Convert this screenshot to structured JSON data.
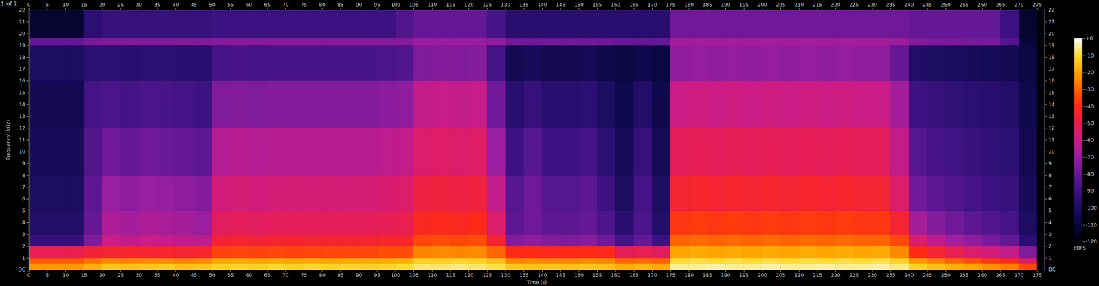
{
  "chart_data": {
    "type": "spectrogram",
    "annotations": [
      "1 of 2"
    ],
    "xlabel": "Time (s)",
    "ylabel": "Frequency (kHz)",
    "xlim": [
      0,
      277
    ],
    "ylim": [
      0,
      22
    ],
    "xticks": [
      0,
      5,
      10,
      15,
      20,
      25,
      30,
      35,
      40,
      45,
      50,
      55,
      60,
      65,
      70,
      75,
      80,
      85,
      90,
      95,
      100,
      105,
      110,
      115,
      120,
      125,
      130,
      135,
      140,
      145,
      150,
      155,
      160,
      165,
      170,
      175,
      180,
      185,
      190,
      195,
      200,
      205,
      210,
      215,
      220,
      225,
      230,
      235,
      240,
      245,
      250,
      255,
      260,
      265,
      270,
      275
    ],
    "yticks": [
      {
        "value": 0,
        "label": "DC"
      },
      1,
      2,
      3,
      4,
      5,
      6,
      7,
      8,
      9,
      10,
      11,
      12,
      13,
      14,
      15,
      16,
      17,
      18,
      19,
      20,
      21,
      22
    ],
    "time_bins": [
      0,
      5,
      10,
      15,
      20,
      25,
      30,
      35,
      40,
      45,
      50,
      55,
      60,
      65,
      70,
      75,
      80,
      85,
      90,
      95,
      100,
      105,
      110,
      115,
      120,
      125,
      130,
      135,
      140,
      145,
      150,
      155,
      160,
      165,
      170,
      175,
      180,
      185,
      190,
      195,
      200,
      205,
      210,
      215,
      220,
      225,
      230,
      235,
      240,
      245,
      250,
      255,
      260,
      265,
      270,
      275,
      277
    ],
    "freq_bins": [
      0,
      0.5,
      1,
      2,
      3,
      5,
      8,
      12,
      16,
      19,
      19.6,
      22
    ],
    "dbfs": [
      [
        -22,
        -22,
        -22,
        -18,
        -14,
        -15,
        -14,
        -13,
        -15,
        -14,
        -12,
        -11,
        -12,
        -11,
        -12,
        -11,
        -12,
        -11,
        -12,
        -11,
        -10,
        -7,
        -7,
        -6,
        -7,
        -9,
        -14,
        -15,
        -14,
        -15,
        -14,
        -15,
        -18,
        -17,
        -19,
        -5,
        -5,
        -4,
        -5,
        -5,
        -4,
        -5,
        -5,
        -4,
        -5,
        -5,
        -4,
        -6,
        -12,
        -15,
        -18,
        -20,
        -23,
        -26,
        -35,
        -120
      ],
      [
        -32,
        -32,
        -32,
        -28,
        -24,
        -25,
        -24,
        -24,
        -25,
        -24,
        -20,
        -19,
        -20,
        -19,
        -20,
        -19,
        -20,
        -19,
        -19,
        -19,
        -18,
        -12,
        -12,
        -11,
        -12,
        -15,
        -25,
        -24,
        -25,
        -25,
        -24,
        -25,
        -30,
        -29,
        -31,
        -10,
        -9,
        -10,
        -9,
        -10,
        -9,
        -10,
        -9,
        -10,
        -9,
        -10,
        -9,
        -12,
        -22,
        -26,
        -30,
        -34,
        -38,
        -42,
        -55,
        -120
      ],
      [
        -50,
        -50,
        -50,
        -46,
        -45,
        -44,
        -45,
        -44,
        -45,
        -44,
        -36,
        -35,
        -36,
        -35,
        -36,
        -35,
        -35,
        -35,
        -35,
        -34,
        -34,
        -25,
        -24,
        -25,
        -24,
        -30,
        -40,
        -40,
        -41,
        -40,
        -40,
        -41,
        -52,
        -50,
        -53,
        -20,
        -19,
        -20,
        -19,
        -20,
        -19,
        -20,
        -19,
        -20,
        -19,
        -20,
        -19,
        -24,
        -40,
        -45,
        -50,
        -55,
        -58,
        -62,
        -75,
        -120
      ],
      [
        -92,
        -92,
        -92,
        -75,
        -60,
        -62,
        -60,
        -61,
        -62,
        -63,
        -46,
        -45,
        -46,
        -45,
        -45,
        -45,
        -45,
        -45,
        -45,
        -44,
        -44,
        -35,
        -34,
        -35,
        -34,
        -45,
        -74,
        -72,
        -74,
        -75,
        -73,
        -78,
        -88,
        -80,
        -90,
        -30,
        -29,
        -30,
        -29,
        -30,
        -29,
        -30,
        -29,
        -30,
        -29,
        -30,
        -30,
        -35,
        -55,
        -62,
        -68,
        -72,
        -76,
        -80,
        -95,
        -120
      ],
      [
        -98,
        -98,
        -98,
        -80,
        -66,
        -68,
        -66,
        -67,
        -68,
        -70,
        -53,
        -52,
        -53,
        -52,
        -52,
        -52,
        -52,
        -52,
        -52,
        -51,
        -50,
        -42,
        -41,
        -42,
        -41,
        -55,
        -82,
        -78,
        -82,
        -82,
        -80,
        -86,
        -96,
        -86,
        -98,
        -38,
        -37,
        -38,
        -37,
        -38,
        -37,
        -38,
        -37,
        -38,
        -37,
        -38,
        -38,
        -45,
        -68,
        -74,
        -78,
        -82,
        -85,
        -88,
        -100,
        -120
      ],
      [
        -100,
        -100,
        -100,
        -82,
        -70,
        -72,
        -70,
        -71,
        -72,
        -74,
        -58,
        -57,
        -58,
        -57,
        -57,
        -57,
        -57,
        -57,
        -57,
        -56,
        -55,
        -48,
        -47,
        -48,
        -47,
        -62,
        -84,
        -78,
        -84,
        -84,
        -82,
        -90,
        -100,
        -88,
        -100,
        -45,
        -44,
        -45,
        -44,
        -45,
        -44,
        -45,
        -44,
        -45,
        -44,
        -45,
        -45,
        -55,
        -78,
        -82,
        -85,
        -88,
        -90,
        -92,
        -102,
        -120
      ],
      [
        -102,
        -102,
        -102,
        -85,
        -78,
        -80,
        -78,
        -79,
        -80,
        -82,
        -65,
        -64,
        -65,
        -64,
        -64,
        -64,
        -64,
        -64,
        -64,
        -63,
        -62,
        -55,
        -54,
        -55,
        -54,
        -70,
        -90,
        -84,
        -90,
        -90,
        -88,
        -95,
        -102,
        -92,
        -103,
        -52,
        -51,
        -52,
        -51,
        -52,
        -51,
        -52,
        -51,
        -52,
        -51,
        -52,
        -52,
        -62,
        -84,
        -87,
        -89,
        -91,
        -93,
        -95,
        -104,
        -120
      ],
      [
        -104,
        -104,
        -104,
        -88,
        -86,
        -88,
        -86,
        -87,
        -88,
        -90,
        -75,
        -74,
        -75,
        -74,
        -74,
        -74,
        -74,
        -74,
        -74,
        -73,
        -72,
        -62,
        -61,
        -62,
        -61,
        -78,
        -96,
        -92,
        -96,
        -96,
        -95,
        -100,
        -105,
        -98,
        -106,
        -60,
        -59,
        -60,
        -59,
        -60,
        -59,
        -60,
        -59,
        -60,
        -59,
        -60,
        -60,
        -68,
        -90,
        -92,
        -94,
        -95,
        -96,
        -98,
        -106,
        -120
      ],
      [
        -100,
        -100,
        -100,
        -95,
        -95,
        -96,
        -95,
        -95,
        -96,
        -96,
        -88,
        -87,
        -88,
        -87,
        -87,
        -87,
        -87,
        -87,
        -87,
        -86,
        -85,
        -75,
        -74,
        -75,
        -74,
        -88,
        -104,
        -102,
        -104,
        -104,
        -103,
        -106,
        -108,
        -105,
        -108,
        -72,
        -71,
        -72,
        -71,
        -72,
        -71,
        -72,
        -71,
        -72,
        -71,
        -72,
        -72,
        -80,
        -98,
        -100,
        -101,
        -102,
        -103,
        -104,
        -108,
        -120
      ],
      [
        -80,
        -80,
        -80,
        -76,
        -75,
        -75,
        -75,
        -75,
        -75,
        -75,
        -74,
        -74,
        -74,
        -74,
        -74,
        -74,
        -74,
        -74,
        -74,
        -74,
        -74,
        -70,
        -70,
        -70,
        -70,
        -72,
        -78,
        -78,
        -78,
        -78,
        -78,
        -78,
        -80,
        -80,
        -80,
        -68,
        -68,
        -68,
        -68,
        -68,
        -68,
        -68,
        -68,
        -68,
        -68,
        -68,
        -68,
        -70,
        -75,
        -76,
        -76,
        -77,
        -77,
        -85,
        -110,
        -120
      ],
      [
        -112,
        -112,
        -112,
        -95,
        -92,
        -92,
        -92,
        -92,
        -92,
        -92,
        -90,
        -90,
        -90,
        -90,
        -90,
        -90,
        -90,
        -90,
        -90,
        -90,
        -85,
        -80,
        -80,
        -80,
        -80,
        -88,
        -96,
        -96,
        -96,
        -96,
        -96,
        -96,
        -96,
        -96,
        -96,
        -78,
        -78,
        -78,
        -78,
        -78,
        -78,
        -78,
        -78,
        -78,
        -78,
        -78,
        -78,
        -78,
        -80,
        -80,
        -80,
        -80,
        -80,
        -90,
        -112,
        -120
      ]
    ],
    "colorbar": {
      "label": "dBFS",
      "lim": [
        -120,
        0
      ],
      "ticks": [
        {
          "value": 0,
          "label": "+0"
        },
        -10,
        -20,
        -30,
        -40,
        -50,
        -60,
        -70,
        -80,
        -90,
        -100,
        -110,
        -120
      ]
    }
  }
}
